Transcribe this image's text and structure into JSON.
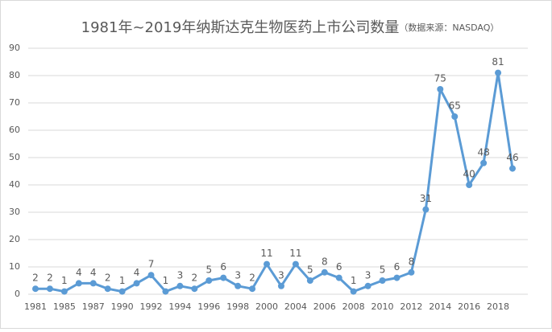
{
  "chart_data": {
    "type": "line",
    "title": "1981年~2019年纳斯达克生物医药上市公司数量",
    "subtitle": "（数据来源：NASDAQ）",
    "categories": [
      "1981",
      null,
      "1985",
      null,
      "1987",
      null,
      "1990",
      null,
      "1992",
      null,
      "1994",
      null,
      "1996",
      null,
      "1998",
      null,
      "2000",
      null,
      "2004",
      null,
      "2006",
      null,
      "2008",
      null,
      "2010",
      null,
      "2012",
      null,
      "2014",
      null,
      "2016",
      null,
      "2018",
      null
    ],
    "series": [
      {
        "name": "上市公司数量",
        "color": "#5b9bd5",
        "values": [
          2,
          2,
          1,
          4,
          4,
          2,
          1,
          4,
          7,
          1,
          3,
          2,
          5,
          6,
          3,
          2,
          11,
          3,
          11,
          5,
          8,
          6,
          1,
          3,
          5,
          6,
          8,
          31,
          75,
          65,
          40,
          48,
          81,
          46
        ]
      }
    ],
    "ylim": [
      0,
      90
    ],
    "yticks": [
      0,
      10,
      20,
      30,
      40,
      50,
      60,
      70,
      80,
      90
    ],
    "grid": true
  }
}
